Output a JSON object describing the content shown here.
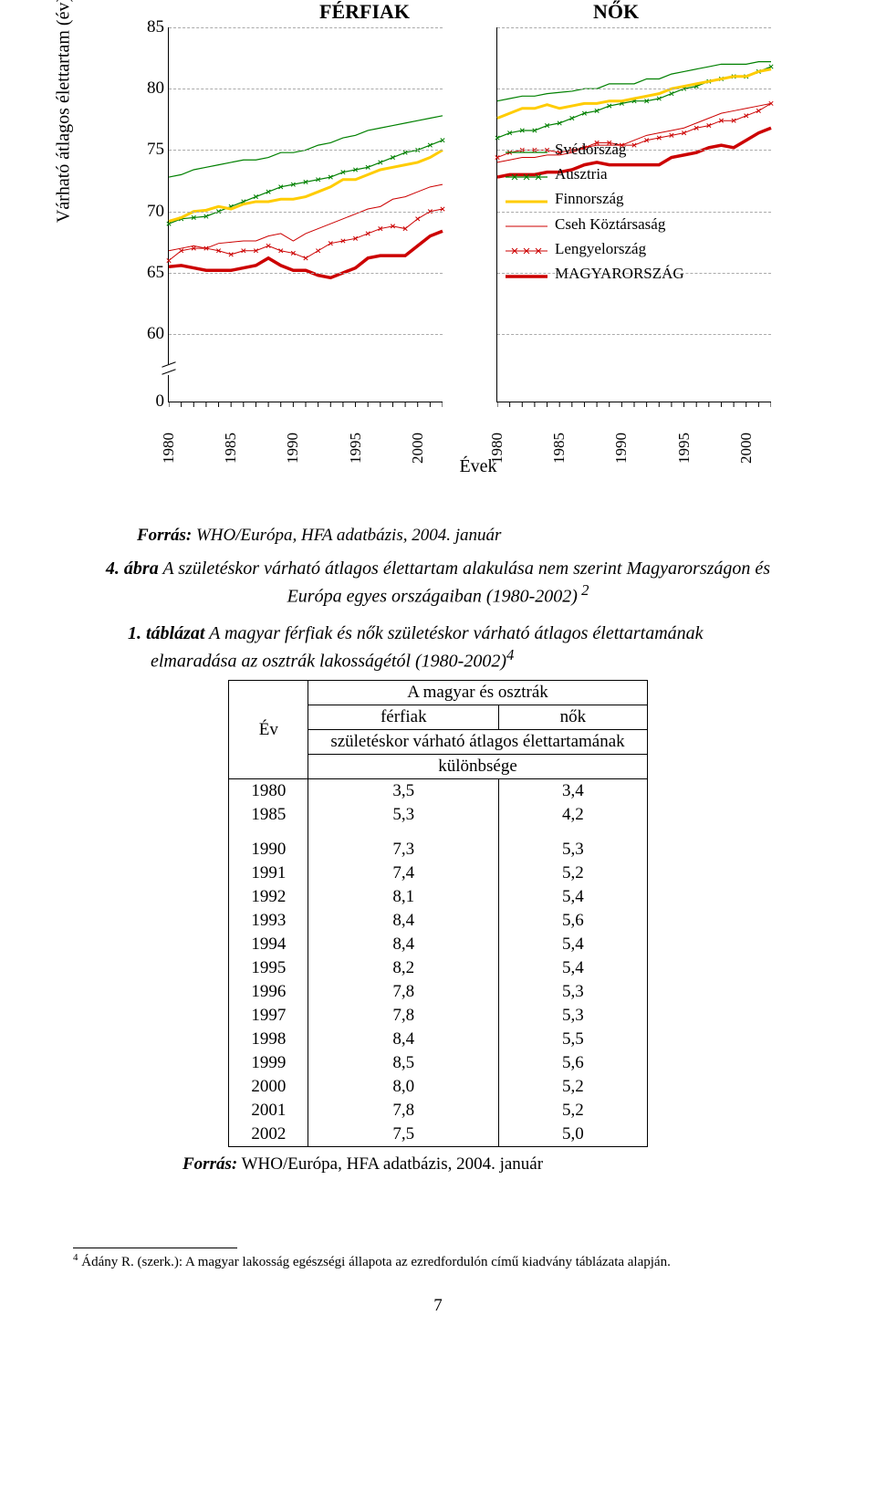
{
  "chart": {
    "title_left": "FÉRFIAK",
    "title_right": "NŐK",
    "ylabel": "Várható átlagos élettartam (év)",
    "yticks": [
      0,
      60,
      65,
      70,
      75,
      80,
      85
    ],
    "ylim": [
      57,
      86
    ],
    "ytick_positions_pct": [
      100,
      82,
      65.6,
      49.2,
      32.8,
      16.4,
      0
    ],
    "axis_break_pct": 90,
    "xticks": [
      "1980",
      "1985",
      "1990",
      "1995",
      "2000"
    ],
    "xlabel": "Évek",
    "forras": "Forrás: WHO/Európa, HFA adatbázis, 2004. január",
    "forras_bold": "Forrás:",
    "legend": [
      {
        "label": "Svédország",
        "color": "#008000",
        "width": 1.2,
        "marker": "none"
      },
      {
        "label": "Ausztria",
        "color": "#008000",
        "width": 1.2,
        "marker": "x"
      },
      {
        "label": "Finnország",
        "color": "#ffcc00",
        "width": 3.0,
        "marker": "none"
      },
      {
        "label": "Cseh Köztársaság",
        "color": "#cc0000",
        "width": 1.0,
        "marker": "none"
      },
      {
        "label": "Lengyelország",
        "color": "#cc0000",
        "width": 1.0,
        "marker": "x"
      },
      {
        "label": "MAGYARORSZÁG",
        "color": "#cc0000",
        "width": 3.5,
        "marker": "none"
      }
    ],
    "panels": {
      "left": {
        "series": {
          "svedorszag": [
            72.8,
            73.0,
            73.4,
            73.6,
            73.8,
            74.0,
            74.2,
            74.2,
            74.4,
            74.8,
            74.8,
            75.0,
            75.4,
            75.6,
            76.0,
            76.2,
            76.6,
            76.8,
            77.0,
            77.2,
            77.4,
            77.6,
            77.8
          ],
          "ausztria": [
            69.0,
            69.4,
            69.5,
            69.6,
            70.0,
            70.4,
            70.8,
            71.2,
            71.6,
            72.0,
            72.2,
            72.4,
            72.6,
            72.8,
            73.2,
            73.4,
            73.6,
            74.0,
            74.4,
            74.8,
            75.0,
            75.4,
            75.8
          ],
          "finnorszag": [
            69.2,
            69.5,
            70.0,
            70.1,
            70.4,
            70.2,
            70.6,
            70.8,
            70.8,
            71.0,
            71.0,
            71.2,
            71.6,
            72.0,
            72.6,
            72.6,
            73.0,
            73.4,
            73.6,
            73.8,
            74.0,
            74.4,
            75.0
          ],
          "cseh": [
            66.8,
            67.0,
            67.2,
            67.0,
            67.4,
            67.5,
            67.6,
            67.6,
            68.0,
            68.2,
            67.6,
            68.2,
            68.6,
            69.0,
            69.4,
            69.8,
            70.2,
            70.4,
            71.0,
            71.2,
            71.6,
            72.0,
            72.2
          ],
          "lengyelorszag": [
            66.0,
            66.8,
            67.0,
            67.0,
            66.8,
            66.5,
            66.8,
            66.8,
            67.2,
            66.8,
            66.6,
            66.2,
            66.8,
            67.4,
            67.6,
            67.8,
            68.2,
            68.6,
            68.8,
            68.6,
            69.4,
            70.0,
            70.2
          ],
          "magyarorszag": [
            65.5,
            65.6,
            65.4,
            65.2,
            65.2,
            65.2,
            65.4,
            65.6,
            66.2,
            65.6,
            65.2,
            65.2,
            64.8,
            64.6,
            65.0,
            65.4,
            66.2,
            66.4,
            66.4,
            66.4,
            67.2,
            68.0,
            68.4
          ]
        }
      },
      "right": {
        "series": {
          "svedorszag": [
            79.0,
            79.2,
            79.4,
            79.4,
            79.6,
            79.7,
            79.8,
            80.0,
            80.0,
            80.4,
            80.4,
            80.4,
            80.8,
            80.8,
            81.2,
            81.4,
            81.6,
            81.8,
            82.0,
            82.0,
            82.0,
            82.2,
            82.2
          ],
          "ausztria": [
            76.0,
            76.4,
            76.6,
            76.6,
            77.0,
            77.2,
            77.6,
            78.0,
            78.2,
            78.6,
            78.8,
            79.0,
            79.0,
            79.2,
            79.6,
            80.0,
            80.2,
            80.6,
            80.8,
            81.0,
            81.0,
            81.4,
            81.8
          ],
          "finnorszag": [
            77.6,
            78.0,
            78.4,
            78.4,
            78.7,
            78.4,
            78.6,
            78.8,
            78.8,
            79.0,
            79.0,
            79.2,
            79.4,
            79.6,
            80.0,
            80.2,
            80.4,
            80.6,
            80.8,
            81.0,
            81.0,
            81.4,
            81.6
          ],
          "cseh": [
            74.0,
            74.2,
            74.4,
            74.4,
            74.6,
            74.6,
            74.8,
            75.2,
            75.4,
            75.4,
            75.4,
            75.8,
            76.2,
            76.4,
            76.6,
            76.8,
            77.2,
            77.6,
            78.0,
            78.2,
            78.4,
            78.6,
            78.8
          ],
          "lengyelorszag": [
            74.4,
            74.8,
            75.0,
            75.0,
            75.0,
            74.8,
            75.0,
            75.2,
            75.6,
            75.6,
            75.4,
            75.4,
            75.8,
            76.0,
            76.2,
            76.4,
            76.8,
            77.0,
            77.4,
            77.4,
            77.8,
            78.2,
            78.8
          ],
          "magyarorszag": [
            72.8,
            73.0,
            73.0,
            73.0,
            73.2,
            73.2,
            73.4,
            73.8,
            74.0,
            73.8,
            73.8,
            73.8,
            73.8,
            73.8,
            74.4,
            74.6,
            74.8,
            75.2,
            75.4,
            75.2,
            75.8,
            76.4,
            76.8
          ]
        }
      }
    }
  },
  "figcap": {
    "num": "4. ábra",
    "text_l1": " A születéskor várható átlagos élettartam alakulása nem szerint Magyarországon és",
    "text_l2": "Európa egyes országaiban (1980-2002)",
    "sup": " 2"
  },
  "tabcap": {
    "num": "1. táblázat",
    "text_l1": " A magyar férfiak és nők születéskor várható átlagos élettartamának",
    "text_l2": "elmaradása az osztrák lakosságétól (1980-2002)",
    "sup": "4"
  },
  "table": {
    "h_year": "Év",
    "h_top": "A magyar és osztrák",
    "h_male": "férfiak",
    "h_female": "nők",
    "h_line3": "születéskor várható átlagos élettartamának",
    "h_line4": "különbsége",
    "rows": [
      {
        "y": "1980",
        "m": "3,5",
        "f": "3,4"
      },
      {
        "y": "1985",
        "m": "5,3",
        "f": "4,2"
      },
      {
        "y": "1990",
        "m": "7,3",
        "f": "5,3"
      },
      {
        "y": "1991",
        "m": "7,4",
        "f": "5,2"
      },
      {
        "y": "1992",
        "m": "8,1",
        "f": "5,4"
      },
      {
        "y": "1993",
        "m": "8,4",
        "f": "5,6"
      },
      {
        "y": "1994",
        "m": "8,4",
        "f": "5,4"
      },
      {
        "y": "1995",
        "m": "8,2",
        "f": "5,4"
      },
      {
        "y": "1996",
        "m": "7,8",
        "f": "5,3"
      },
      {
        "y": "1997",
        "m": "7,8",
        "f": "5,3"
      },
      {
        "y": "1998",
        "m": "8,4",
        "f": "5,5"
      },
      {
        "y": "1999",
        "m": "8,5",
        "f": "5,6"
      },
      {
        "y": "2000",
        "m": "8,0",
        "f": "5,2"
      },
      {
        "y": "2001",
        "m": "7,8",
        "f": "5,2"
      },
      {
        "y": "2002",
        "m": "7,5",
        "f": "5,0"
      }
    ],
    "forras": "Forrás: WHO/Európa, HFA adatbázis, 2004. január",
    "forras_bold": "Forrás:"
  },
  "footnote": {
    "num": "4",
    "text": " Ádány R. (szerk.): A magyar lakosság egészségi állapota az ezredfordulón című kiadvány táblázata alapján."
  },
  "page_number": "7"
}
